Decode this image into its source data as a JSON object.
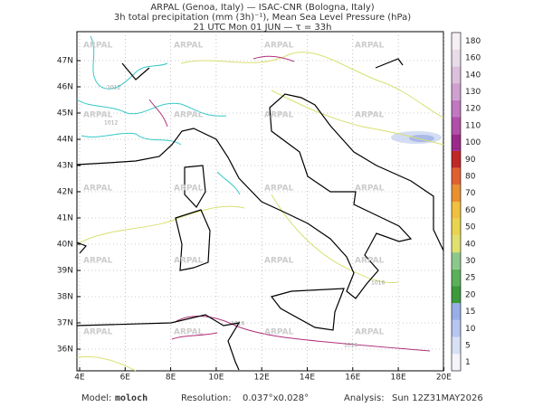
{
  "header": {
    "line1": "ARPAL (Genoa, Italy)  —  ISAC-CNR (Bologna, Italy)",
    "line2": "3h total precipitation (mm (3h)⁻¹), Mean Sea Level Pressure (hPa)",
    "line3": "21 UTC Mon 01 JUN  —  τ = 33h"
  },
  "map": {
    "lat_labels": [
      "47N",
      "46N",
      "45N",
      "44N",
      "43N",
      "42N",
      "41N",
      "40N",
      "39N",
      "38N",
      "37N",
      "36N"
    ],
    "lon_labels": [
      "4E",
      "6E",
      "8E",
      "10E",
      "12E",
      "14E",
      "16E",
      "18E",
      "20E"
    ],
    "watermark": "ARPAL"
  },
  "isobar_labels": [
    "1012",
    "1012",
    "1016",
    "1016",
    "1016"
  ],
  "colorbar": {
    "labels": [
      "1",
      "5",
      "10",
      "15",
      "20",
      "25",
      "30",
      "40",
      "50",
      "60",
      "70",
      "80",
      "90",
      "100",
      "110",
      "120",
      "130",
      "140",
      "160",
      "180"
    ],
    "colors": [
      "#f4f4fa",
      "#d8e0f6",
      "#b6c6f0",
      "#98aee8",
      "#3c9a3c",
      "#5cb05c",
      "#8cc88c",
      "#e0e070",
      "#e8d450",
      "#f0c040",
      "#e89030",
      "#e06030",
      "#c02828",
      "#9a2a8a",
      "#b050a8",
      "#c078c0",
      "#d0a0d0",
      "#dcc0dc",
      "#e8dce8",
      "#f4f0f4"
    ]
  },
  "footer": {
    "model_label": "Model:",
    "model": "moloch",
    "resolution_label": "Resolution:",
    "resolution": "0.037°x0.028°",
    "analysis_label": "Analysis:",
    "analysis": "Sun 12Z31MAY2026"
  }
}
